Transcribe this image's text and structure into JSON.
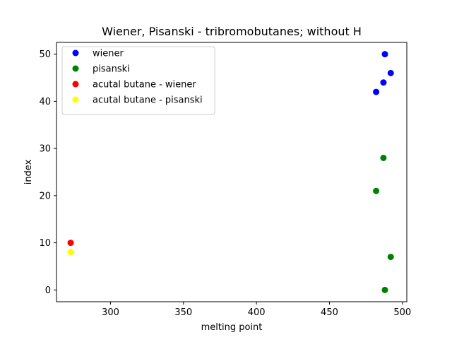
{
  "chart_data": {
    "type": "scatter",
    "title": "Wiener, Pisanski - tribromobutanes; without H",
    "xlabel": "melting point",
    "ylabel": "index",
    "xlim": [
      263,
      503
    ],
    "ylim": [
      -2.5,
      52.5
    ],
    "x_ticks": [
      300,
      350,
      400,
      450,
      500
    ],
    "y_ticks": [
      0,
      10,
      20,
      30,
      40,
      50
    ],
    "grid": false,
    "legend_position": "upper-left",
    "series": [
      {
        "name": "wiener",
        "color": "#0000ff",
        "points": [
          [
            482,
            42
          ],
          [
            487,
            44
          ],
          [
            488,
            50
          ],
          [
            492,
            46
          ]
        ]
      },
      {
        "name": "pisanski",
        "color": "#008000",
        "points": [
          [
            482,
            21
          ],
          [
            487,
            28
          ],
          [
            488,
            0
          ],
          [
            492,
            7
          ]
        ]
      },
      {
        "name": "acutal butane - wiener",
        "color": "#ff0000",
        "points": [
          [
            272.7,
            10
          ]
        ]
      },
      {
        "name": "acutal butane - pisanski",
        "color": "#ffff00",
        "points": [
          [
            272.7,
            8
          ]
        ]
      }
    ]
  }
}
